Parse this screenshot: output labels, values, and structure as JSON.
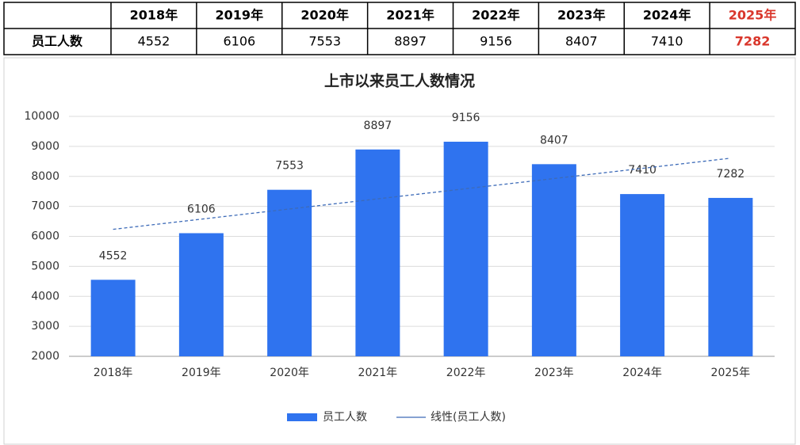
{
  "chart_data": {
    "type": "bar",
    "title": "上市以来员工人数情况",
    "categories": [
      "2018年",
      "2019年",
      "2020年",
      "2021年",
      "2022年",
      "2023年",
      "2024年",
      "2025年"
    ],
    "series": [
      {
        "name": "员工人数",
        "color": "#2f73ef",
        "values": [
          4552,
          6106,
          7553,
          8897,
          9156,
          8407,
          7410,
          7282
        ]
      }
    ],
    "trendline": {
      "name": "线性(员工人数)",
      "type": "linear",
      "color": "#3d6bb8"
    },
    "ylim": [
      2000,
      10000
    ],
    "yticks": [
      2000,
      3000,
      4000,
      5000,
      6000,
      7000,
      8000,
      9000,
      10000
    ],
    "grid": true,
    "data_labels": true,
    "legend": "bottom",
    "table_highlight": {
      "index": 7,
      "color": "#d9362b"
    }
  }
}
